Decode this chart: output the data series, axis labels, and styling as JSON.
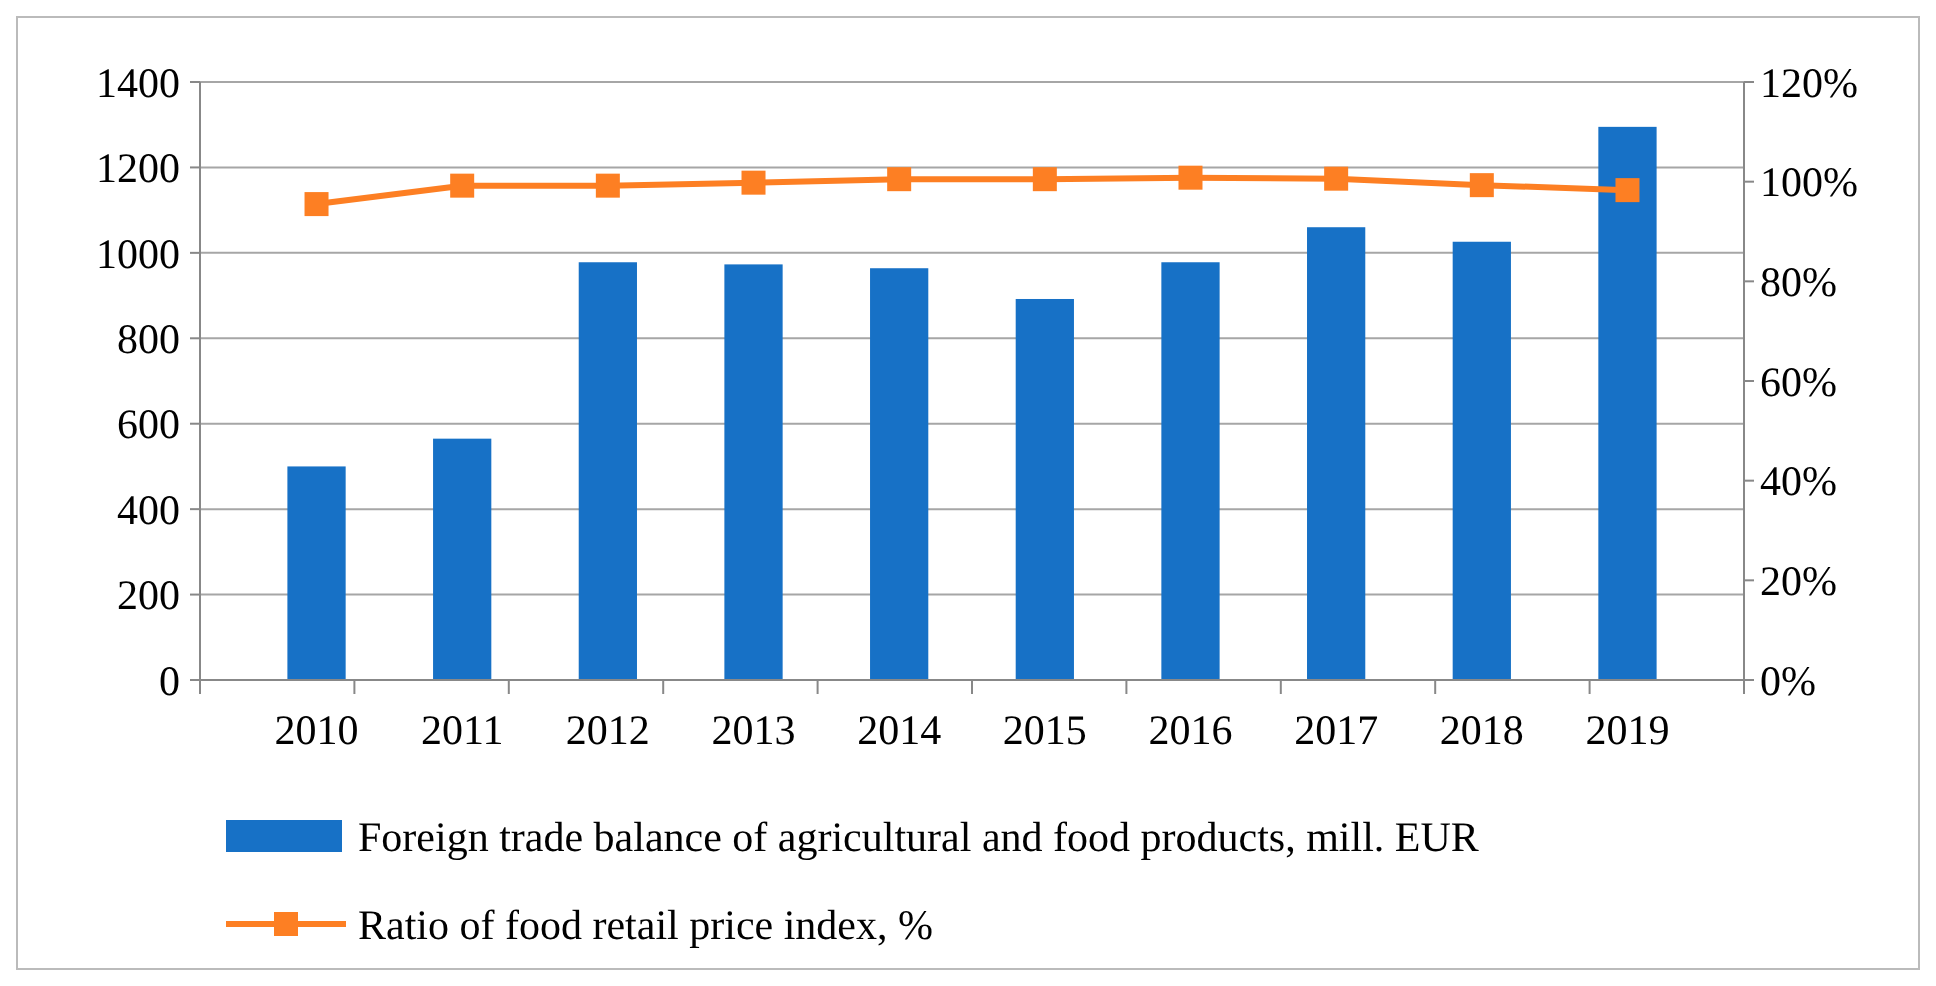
{
  "chart_data": {
    "type": "bar",
    "categories": [
      "2010",
      "2011",
      "2012",
      "2013",
      "2014",
      "2015",
      "2016",
      "2017",
      "2018",
      "2019"
    ],
    "series": [
      {
        "name": "Foreign trade balance of agricultural and food products, mill. EUR",
        "color": "#1771c6",
        "values": [
          500,
          565,
          978,
          973,
          964,
          892,
          978,
          1060,
          1026,
          1295
        ]
      },
      {
        "name": "Ratio of food retail price index, %",
        "type": "line",
        "axis": "y2",
        "color": "#fd7f23",
        "marker": "square",
        "values": [
          95.5,
          99.2,
          99.2,
          99.8,
          100.5,
          100.5,
          100.8,
          100.6,
          99.3,
          98.3
        ]
      }
    ],
    "ylim": [
      0,
      1400
    ],
    "yticks": [
      0,
      200,
      400,
      600,
      800,
      1000,
      1200,
      1400
    ],
    "y2lim": [
      0,
      120
    ],
    "y2ticks": [
      {
        "value": 0,
        "label": "0%"
      },
      {
        "value": 20,
        "label": "20%"
      },
      {
        "value": 40,
        "label": "40%"
      },
      {
        "value": 60,
        "label": "60%"
      },
      {
        "value": 80,
        "label": "80%"
      },
      {
        "value": 100,
        "label": "100%"
      },
      {
        "value": 120,
        "label": "120%"
      }
    ],
    "grid": "y",
    "legend": "bottom"
  }
}
